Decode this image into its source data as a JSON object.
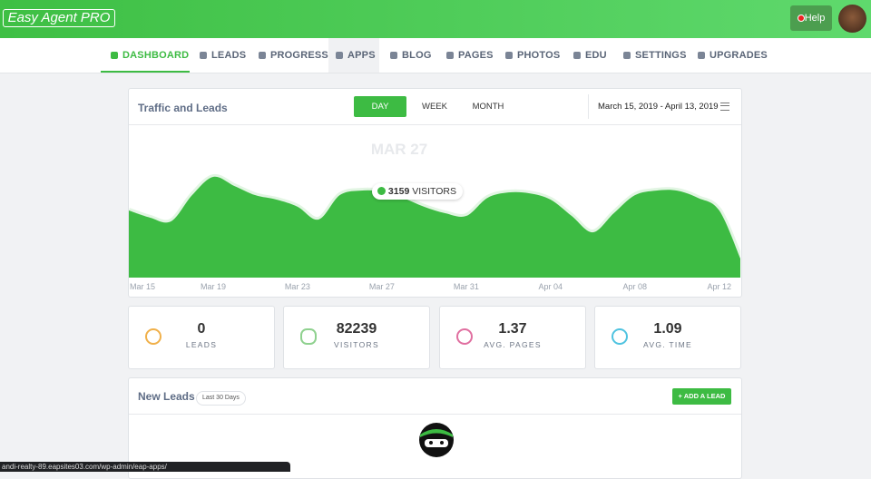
{
  "header": {
    "logo": "Easy Agent PRO",
    "help": "Help"
  },
  "nav": [
    "DASHBOARD",
    "LEADS",
    "PROGRESS",
    "APPS",
    "BLOG",
    "PAGES",
    "PHOTOS",
    "EDU",
    "SETTINGS",
    "UPGRADES"
  ],
  "traffic": {
    "title": "Traffic and Leads",
    "ranges": [
      "DAY",
      "WEEK",
      "MONTH"
    ],
    "date_range": "March 15, 2019 - April 13, 2019",
    "hover_date": "MAR 27",
    "hover_unit": "VISITORS"
  },
  "chart_data": {
    "type": "area",
    "color": "#3dbb43",
    "categories": [
      "Mar 15",
      null,
      null,
      null,
      "Mar 19",
      null,
      null,
      null,
      "Mar 23",
      null,
      null,
      null,
      "Mar 27",
      null,
      null,
      null,
      "Mar 31",
      null,
      null,
      null,
      "Apr 04",
      null,
      null,
      null,
      "Apr 08",
      null,
      null,
      null,
      "Apr 12",
      null
    ],
    "values": [
      2460,
      2200,
      2060,
      3020,
      3690,
      3360,
      3020,
      2860,
      2600,
      2130,
      3020,
      3190,
      3159,
      2920,
      2600,
      2360,
      2260,
      2920,
      3120,
      3090,
      2860,
      2260,
      1660,
      2360,
      3020,
      3190,
      3190,
      2920,
      2460,
      700
    ],
    "ylim": [
      0,
      5600
    ]
  },
  "stats": [
    {
      "value": 0,
      "label": "LEADS"
    },
    {
      "value": 82239,
      "label": "VISITORS"
    },
    {
      "value": 1.37,
      "label": "AVG. PAGES"
    },
    {
      "value": 1.09,
      "label": "AVG. TIME"
    }
  ],
  "new_leads": {
    "title": "New Leads",
    "badge": "Last 30 Days",
    "button": "ADD A LEAD"
  },
  "status_url": "andi-realty-89.eapsites03.com/wp-admin/eap-apps/"
}
